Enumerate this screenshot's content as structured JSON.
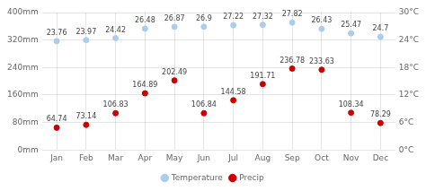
{
  "chart_data": {
    "type": "scatter",
    "categories": [
      "Jan",
      "Feb",
      "Mar",
      "Apr",
      "May",
      "Jun",
      "Jul",
      "Aug",
      "Sep",
      "Oct",
      "Nov",
      "Dec"
    ],
    "series": [
      {
        "name": "Temperature",
        "color": "#aaccee",
        "axis": "y2",
        "values": [
          23.76,
          23.97,
          24.42,
          26.48,
          26.87,
          26.9,
          27.22,
          27.32,
          27.82,
          26.43,
          25.47,
          24.7
        ]
      },
      {
        "name": "Precip",
        "color": "#cc0000",
        "values": [
          64.74,
          73.14,
          106.83,
          164.89,
          202.49,
          106.84,
          144.58,
          191.71,
          236.78,
          233.63,
          108.34,
          78.29
        ]
      }
    ],
    "ylim": [
      0,
      400
    ],
    "yticks": [
      {
        "value": 0,
        "label": "0mm"
      },
      {
        "value": 80,
        "label": "80mm"
      },
      {
        "value": 160,
        "label": "160mm"
      },
      {
        "value": 240,
        "label": "240mm"
      },
      {
        "value": 320,
        "label": "320mm"
      },
      {
        "value": 400,
        "label": "400mm"
      }
    ],
    "y2lim": [
      0,
      30
    ],
    "y2ticks": [
      {
        "value": 0,
        "label": "0°C"
      },
      {
        "value": 6,
        "label": "6°C"
      },
      {
        "value": 12,
        "label": "12°C"
      },
      {
        "value": 18,
        "label": "18°C"
      },
      {
        "value": 24,
        "label": "24°C"
      },
      {
        "value": 30,
        "label": "30°C"
      }
    ],
    "grid": true,
    "legend": "bottom",
    "data_labels": true
  }
}
